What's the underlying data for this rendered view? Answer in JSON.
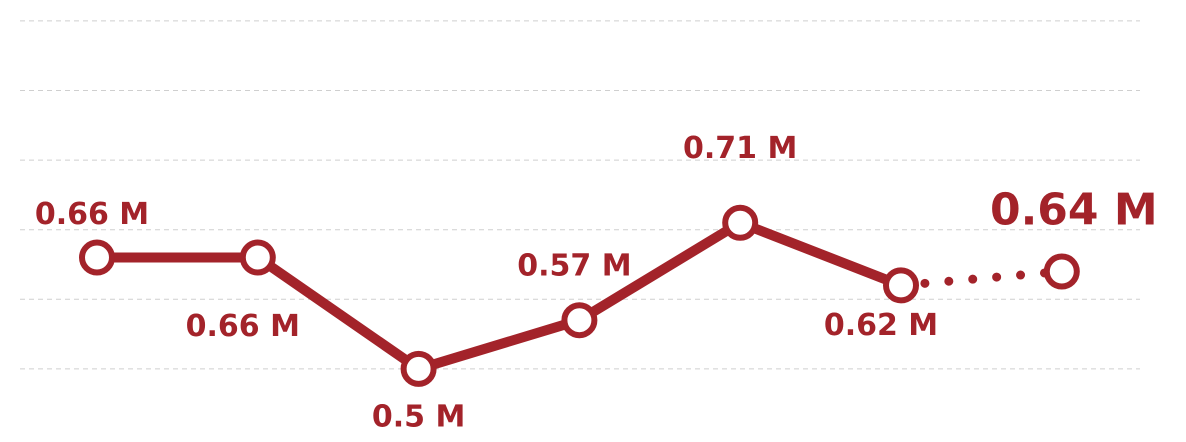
{
  "chart_data": {
    "type": "line",
    "categories": [
      null,
      null,
      null,
      null,
      null,
      null,
      null
    ],
    "values": [
      0.66,
      0.66,
      0.5,
      0.57,
      0.71,
      0.62,
      0.64
    ],
    "value_labels": [
      "0.66 M",
      "0.66 M",
      "0.5 M",
      "0.57 M",
      "0.71 M",
      "0.62 M",
      "0.64 M"
    ],
    "color": "#a3232a",
    "ylim": [
      0.395,
      1.03
    ],
    "yticks": [
      0.5,
      0.6,
      0.7,
      0.8,
      0.9,
      1.0
    ],
    "grid": true,
    "last_segment_style": "dotted"
  }
}
